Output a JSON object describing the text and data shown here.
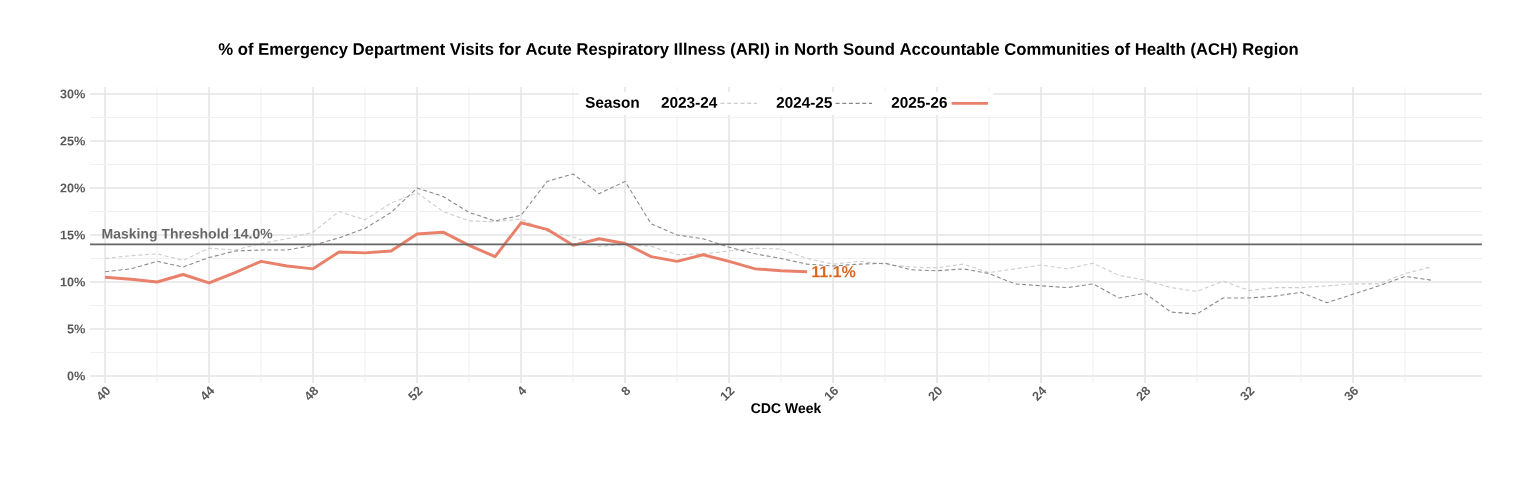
{
  "chart_data": {
    "type": "line",
    "title": "% of Emergency Department Visits for Acute Respiratory Illness (ARI) in North Sound Accountable Communities of Health (ACH) Region",
    "xlabel": "CDC Week",
    "legend_title": "Season",
    "legend": "top",
    "grid": true,
    "categories": [
      "40",
      null,
      null,
      null,
      "44",
      null,
      null,
      null,
      "48",
      null,
      null,
      null,
      "52",
      null,
      null,
      null,
      "4",
      null,
      null,
      null,
      "8",
      null,
      null,
      null,
      "12",
      null,
      null,
      null,
      "16",
      null,
      null,
      null,
      "20",
      null,
      null,
      null,
      "24",
      null,
      null,
      null,
      "28",
      null,
      null,
      null,
      "32",
      null,
      null,
      null,
      "36",
      null,
      null,
      null
    ],
    "ylim": [
      0,
      30
    ],
    "yticks": [
      {
        "value": 0,
        "label": "0%"
      },
      {
        "value": 5,
        "label": "5%"
      },
      {
        "value": 10,
        "label": "10%"
      },
      {
        "value": 15,
        "label": "15%"
      },
      {
        "value": 20,
        "label": "20%"
      },
      {
        "value": 25,
        "label": "25%"
      },
      {
        "value": 30,
        "label": "30%"
      }
    ],
    "series": [
      {
        "name": "2023-24",
        "color": "#cccccc",
        "line_style": "dashed",
        "values": [
          12.5,
          12.8,
          13.0,
          12.3,
          13.6,
          13.4,
          14.1,
          14.6,
          15.3,
          17.5,
          16.6,
          18.4,
          19.5,
          17.5,
          16.5,
          16.4,
          16.7,
          15.4,
          14.8,
          13.8,
          14.0,
          13.8,
          12.9,
          13.0,
          13.3,
          13.6,
          13.5,
          12.5,
          11.9,
          12.2,
          11.9,
          11.6,
          11.5,
          11.9,
          11.0,
          11.4,
          11.8,
          11.4,
          12.0,
          10.7,
          10.2,
          9.4,
          9.0,
          10.1,
          9.1,
          9.4,
          9.4,
          9.6,
          9.8,
          9.8,
          10.9,
          11.6
        ]
      },
      {
        "name": "2024-25",
        "color": "#888888",
        "line_style": "dashed",
        "values": [
          11.1,
          11.4,
          12.2,
          11.6,
          12.6,
          13.3,
          13.4,
          13.4,
          13.9,
          14.7,
          15.7,
          17.4,
          20.0,
          19.1,
          17.4,
          16.5,
          17.1,
          20.7,
          21.5,
          19.4,
          20.7,
          16.2,
          15.0,
          14.6,
          13.7,
          13.0,
          12.5,
          11.9,
          11.7,
          11.9,
          12.0,
          11.3,
          11.2,
          11.4,
          10.9,
          9.8,
          9.6,
          9.4,
          9.8,
          8.3,
          8.8,
          6.8,
          6.6,
          8.3,
          8.3,
          8.5,
          8.9,
          7.8,
          8.7,
          9.6,
          10.6,
          10.2
        ]
      },
      {
        "name": "2025-26",
        "color": "#e8806a",
        "line_style": "solid",
        "values": [
          10.5,
          10.3,
          10.0,
          10.8,
          9.9,
          11.0,
          12.2,
          11.7,
          11.4,
          13.2,
          13.1,
          13.3,
          15.1,
          15.3,
          13.9,
          12.7,
          16.3,
          15.6,
          13.9,
          14.6,
          14.1,
          12.7,
          12.2,
          12.9,
          12.2,
          11.4,
          11.2,
          11.1,
          null,
          null,
          null,
          null,
          null,
          null,
          null,
          null,
          null,
          null,
          null,
          null,
          null,
          null,
          null,
          null,
          null,
          null,
          null,
          null,
          null,
          null,
          null,
          null
        ]
      }
    ],
    "ref_lines": [
      {
        "axis": "y",
        "value": 14.0,
        "label": "Masking Threshold 14.0%",
        "color": "#666666"
      }
    ],
    "annotations": [
      "11.1%"
    ]
  }
}
